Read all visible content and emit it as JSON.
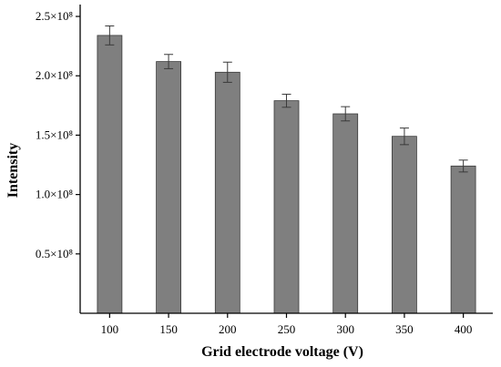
{
  "chart_data": {
    "type": "bar",
    "title": "",
    "xlabel": "Grid electrode voltage (V)",
    "ylabel": "Intensity",
    "categories": [
      "100",
      "150",
      "200",
      "250",
      "300",
      "350",
      "400"
    ],
    "values": [
      234000000,
      212000000,
      203000000,
      179000000,
      168000000,
      149000000,
      124000000
    ],
    "errors": [
      8000000,
      6000000,
      8500000,
      5500000,
      6000000,
      7000000,
      5000000
    ],
    "ylim": [
      0,
      260000000
    ],
    "yticks": [
      50000000,
      100000000,
      150000000,
      200000000,
      250000000
    ],
    "ytick_labels": [
      "0.5×10⁸",
      "1.0×10⁸",
      "1.5×10⁸",
      "2.0×10⁸",
      "2.5×10⁸"
    ],
    "grid": false,
    "legend": false,
    "colors": {
      "bar_fill": "#7f7f7f",
      "bar_stroke": "#3a3a3a",
      "axis": "#000000",
      "error_bar": "#3a3a3a"
    }
  }
}
